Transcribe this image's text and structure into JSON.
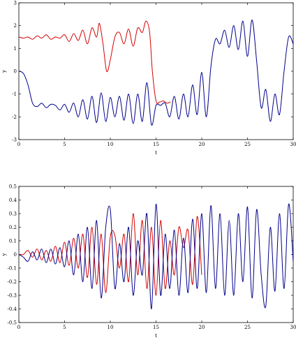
{
  "chart_data": [
    {
      "type": "line",
      "xlabel": "t",
      "ylabel": "y",
      "xlim": [
        0,
        30
      ],
      "ylim": [
        -3,
        3
      ],
      "xticks": [
        0,
        5,
        10,
        15,
        20,
        25,
        30
      ],
      "yticks": [
        -3,
        -2,
        -1,
        0,
        1,
        2,
        3
      ],
      "grid": false,
      "series": [
        {
          "color": "#d40000",
          "x": [
            0,
            0.5,
            1.0,
            1.5,
            2.0,
            2.5,
            3.0,
            3.5,
            4.0,
            4.5,
            5.0,
            5.5,
            6.0,
            6.5,
            7.0,
            7.5,
            8.0,
            8.5,
            8.8,
            9.2,
            9.6,
            10.0,
            10.5,
            11.0,
            11.5,
            12.0,
            12.5,
            13.0,
            13.5,
            13.9,
            14.3,
            14.6,
            15.0,
            15.4,
            15.8,
            16.2,
            16.6
          ],
          "y": [
            1.5,
            1.45,
            1.5,
            1.4,
            1.55,
            1.45,
            1.6,
            1.4,
            1.5,
            1.45,
            1.6,
            1.3,
            1.65,
            1.35,
            1.8,
            1.2,
            1.9,
            1.5,
            2.1,
            1.2,
            0.0,
            0.5,
            1.5,
            1.7,
            1.2,
            1.85,
            1.1,
            1.9,
            1.7,
            2.2,
            1.7,
            0.0,
            -1.3,
            -1.35,
            -1.3,
            -1.4,
            -1.35
          ]
        },
        {
          "color": "#00008b",
          "x": [
            0,
            0.5,
            1.0,
            1.5,
            2.0,
            2.5,
            3.0,
            3.5,
            4.0,
            4.5,
            5.0,
            5.5,
            6.0,
            6.5,
            7.0,
            7.5,
            8.0,
            8.5,
            9.0,
            9.5,
            10.0,
            10.5,
            11.0,
            11.5,
            12.0,
            12.5,
            13.0,
            13.5,
            14.0,
            14.5,
            15.0,
            15.5,
            16.0,
            16.5,
            17.0,
            17.5,
            18.0,
            18.5,
            19.0,
            19.5,
            20.0,
            20.5,
            21.0,
            21.5,
            22.0,
            22.5,
            23.0,
            23.5,
            24.0,
            24.5,
            25.0,
            25.5,
            26.0,
            26.5,
            27.0,
            27.5,
            28.0,
            28.5,
            29.0,
            29.5,
            30.0
          ],
          "y": [
            0.0,
            -0.1,
            -0.6,
            -1.4,
            -1.55,
            -1.4,
            -1.6,
            -1.45,
            -1.5,
            -1.7,
            -1.45,
            -1.8,
            -1.4,
            -2.0,
            -1.25,
            -2.1,
            -1.1,
            -2.25,
            -0.95,
            -2.2,
            -1.15,
            -2.0,
            -1.1,
            -2.15,
            -1.0,
            -2.3,
            -1.0,
            -2.2,
            -0.5,
            -2.35,
            -1.5,
            -1.5,
            -1.4,
            -2.0,
            -1.1,
            -2.1,
            -1.0,
            -2.0,
            -0.6,
            -1.9,
            -0.05,
            -2.0,
            0.2,
            1.4,
            1.2,
            1.8,
            1.05,
            2.0,
            0.95,
            2.2,
            0.65,
            2.25,
            0.45,
            -1.6,
            -0.8,
            -2.2,
            -1.0,
            -1.9,
            0.0,
            1.5,
            1.2
          ]
        }
      ]
    },
    {
      "type": "line",
      "xlabel": "t",
      "ylabel": "y",
      "xlim": [
        0,
        30
      ],
      "ylim": [
        -0.5,
        0.5
      ],
      "xticks": [
        0,
        5,
        10,
        15,
        20,
        25,
        30
      ],
      "yticks": [
        -0.5,
        -0.4,
        -0.3,
        -0.2,
        -0.1,
        0.0,
        0.1,
        0.2,
        0.3,
        0.4,
        0.5
      ],
      "grid": false,
      "series": [
        {
          "color": "#d40000",
          "x": [
            0,
            0.5,
            1.0,
            1.5,
            2.0,
            2.5,
            3.0,
            3.5,
            4.0,
            4.5,
            5.0,
            5.5,
            6.0,
            6.5,
            7.0,
            7.5,
            8.0,
            8.5,
            9.0,
            9.5,
            10.0,
            10.5,
            11.0,
            11.5,
            12.0,
            12.5,
            13.0,
            13.5,
            14.0,
            14.5,
            15.0,
            15.5,
            16.0,
            16.5,
            17.0,
            17.5,
            18.0,
            18.5,
            19.0,
            19.5,
            20.0
          ],
          "y": [
            0.0,
            0.0,
            0.03,
            -0.02,
            0.04,
            -0.04,
            0.03,
            -0.05,
            0.06,
            -0.06,
            0.09,
            -0.08,
            0.12,
            -0.1,
            0.15,
            -0.17,
            0.2,
            -0.22,
            0.15,
            -0.28,
            0.13,
            0.14,
            -0.1,
            0.15,
            -0.2,
            0.3,
            -0.15,
            0.25,
            -0.25,
            0.2,
            -0.3,
            0.25,
            -0.25,
            0.1,
            -0.15,
            0.2,
            0.05,
            0.18,
            -0.22,
            0.28,
            -0.15
          ]
        },
        {
          "color": "#00008b",
          "x": [
            0,
            0.5,
            1.0,
            1.5,
            2.0,
            2.5,
            3.0,
            3.5,
            4.0,
            4.5,
            5.0,
            5.5,
            6.0,
            6.5,
            7.0,
            7.5,
            8.0,
            8.5,
            9.0,
            9.5,
            10.0,
            10.5,
            11.0,
            11.5,
            12.0,
            12.5,
            13.0,
            13.5,
            14.0,
            14.5,
            15.0,
            15.5,
            16.0,
            16.5,
            17.0,
            17.5,
            18.0,
            18.5,
            19.0,
            19.5,
            20.0,
            20.5,
            21.0,
            21.5,
            22.0,
            22.5,
            23.0,
            23.5,
            24.0,
            24.5,
            25.0,
            25.5,
            26.0,
            26.5,
            27.0,
            27.5,
            28.0,
            28.5,
            29.0,
            29.5,
            30.0
          ],
          "y": [
            0.0,
            -0.02,
            -0.05,
            0.02,
            -0.04,
            0.04,
            -0.06,
            0.04,
            -0.07,
            0.05,
            -0.09,
            0.1,
            -0.15,
            0.15,
            -0.2,
            0.2,
            -0.25,
            0.25,
            -0.32,
            0.2,
            0.33,
            -0.25,
            0.08,
            -0.2,
            0.2,
            -0.3,
            0.1,
            -0.15,
            0.3,
            -0.4,
            0.37,
            -0.3,
            0.15,
            -0.25,
            0.18,
            -0.3,
            0.12,
            -0.28,
            0.26,
            -0.25,
            0.3,
            -0.28,
            0.36,
            -0.25,
            0.3,
            -0.3,
            0.25,
            -0.3,
            0.3,
            -0.2,
            0.35,
            -0.32,
            0.33,
            -0.15,
            -0.38,
            0.2,
            -0.27,
            0.3,
            -0.25,
            0.37,
            -0.05
          ]
        }
      ]
    }
  ]
}
